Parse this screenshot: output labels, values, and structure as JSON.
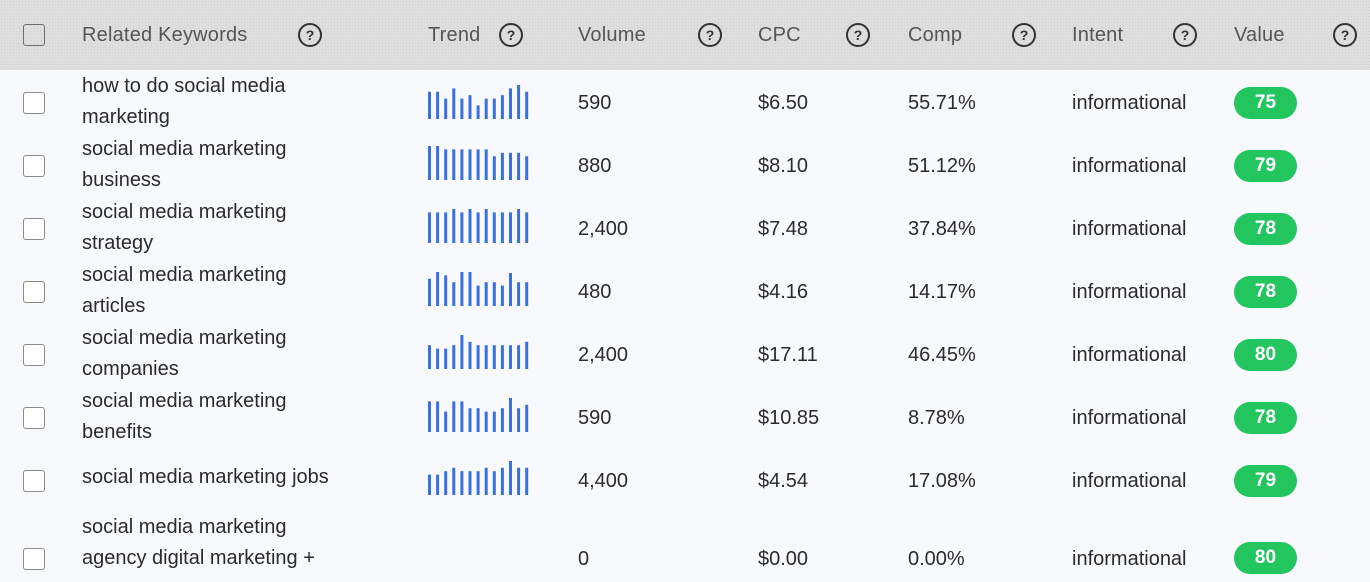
{
  "header": {
    "keywords_label": "Related Keywords",
    "trend_label": "Trend",
    "volume_label": "Volume",
    "cpc_label": "CPC",
    "comp_label": "Comp",
    "intent_label": "Intent",
    "value_label": "Value",
    "help_glyph": "?"
  },
  "colors": {
    "trend_bar": "#3b6fe0",
    "value_badge": "#22c55e"
  },
  "rows": [
    {
      "keyword": "how to do social media marketing",
      "volume": "590",
      "cpc": "$6.50",
      "comp": "55.71%",
      "intent": "informational",
      "value": "75",
      "trend": [
        0.8,
        0.8,
        0.6,
        0.9,
        0.6,
        0.7,
        0.4,
        0.6,
        0.6,
        0.7,
        0.9,
        1.0,
        0.8
      ]
    },
    {
      "keyword": "social media marketing business",
      "volume": "880",
      "cpc": "$8.10",
      "comp": "51.12%",
      "intent": "informational",
      "value": "79",
      "trend": [
        1.0,
        1.0,
        0.9,
        0.9,
        0.9,
        0.9,
        0.9,
        0.9,
        0.7,
        0.8,
        0.8,
        0.8,
        0.7
      ]
    },
    {
      "keyword": "social media marketing strategy",
      "volume": "2,400",
      "cpc": "$7.48",
      "comp": "37.84%",
      "intent": "informational",
      "value": "78",
      "trend": [
        0.9,
        0.9,
        0.9,
        1.0,
        0.9,
        1.0,
        0.9,
        1.0,
        0.9,
        0.9,
        0.9,
        1.0,
        0.9
      ]
    },
    {
      "keyword": "social media marketing articles",
      "volume": "480",
      "cpc": "$4.16",
      "comp": "14.17%",
      "intent": "informational",
      "value": "78",
      "trend": [
        0.8,
        1.0,
        0.9,
        0.7,
        1.0,
        1.0,
        0.6,
        0.7,
        0.7,
        0.6,
        0.97,
        0.7,
        0.7
      ]
    },
    {
      "keyword": "social media marketing companies",
      "volume": "2,400",
      "cpc": "$17.11",
      "comp": "46.45%",
      "intent": "informational",
      "value": "80",
      "trend": [
        0.7,
        0.6,
        0.6,
        0.7,
        1.0,
        0.8,
        0.7,
        0.7,
        0.7,
        0.7,
        0.7,
        0.7,
        0.8
      ]
    },
    {
      "keyword": "social media marketing benefits",
      "volume": "590",
      "cpc": "$10.85",
      "comp": "8.78%",
      "intent": "informational",
      "value": "78",
      "trend": [
        0.9,
        0.9,
        0.6,
        0.9,
        0.9,
        0.7,
        0.7,
        0.6,
        0.6,
        0.7,
        1.0,
        0.7,
        0.8
      ]
    },
    {
      "keyword": "social media marketing jobs",
      "volume": "4,400",
      "cpc": "$4.54",
      "comp": "17.08%",
      "intent": "informational",
      "value": "79",
      "trend": [
        0.6,
        0.6,
        0.7,
        0.8,
        0.7,
        0.7,
        0.7,
        0.8,
        0.7,
        0.8,
        1.0,
        0.8,
        0.8
      ]
    },
    {
      "keyword": "social media marketing agency digital marketing +",
      "volume": "0",
      "cpc": "$0.00",
      "comp": "0.00%",
      "intent": "informational",
      "value": "80",
      "trend": []
    }
  ]
}
